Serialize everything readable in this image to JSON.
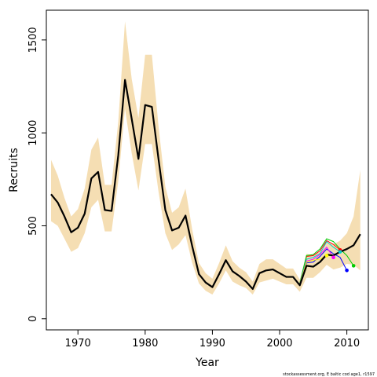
{
  "chart_data": {
    "type": "line",
    "xlabel": "Year",
    "ylabel": "Recruits",
    "caption": "stockassessment.org, E baltic cod age1, r1597",
    "xlim": [
      1965.3,
      2013.2
    ],
    "ylim": [
      -60,
      1660
    ],
    "x_ticks": [
      1970,
      1980,
      1990,
      2000,
      2010
    ],
    "y_ticks": [
      0,
      500,
      1000,
      1500
    ],
    "grid": false,
    "colors": {
      "band": "#f5deb3",
      "estimate": "#000000",
      "retro": [
        "#ff0000",
        "#00cc00",
        "#0000ff",
        "#00cccc",
        "#ff00ff",
        "#ffff00"
      ]
    },
    "band": {
      "x": [
        1966,
        1967,
        1968,
        1969,
        1970,
        1971,
        1972,
        1973,
        1974,
        1975,
        1976,
        1977,
        1978,
        1979,
        1980,
        1981,
        1982,
        1983,
        1984,
        1985,
        1986,
        1987,
        1988,
        1989,
        1990,
        1991,
        1992,
        1993,
        1994,
        1995,
        1996,
        1997,
        1998,
        1999,
        2000,
        2001,
        2002,
        2003,
        2004,
        2005,
        2006,
        2007,
        2008,
        2009,
        2010,
        2011,
        2012
      ],
      "upper": [
        855,
        770,
        650,
        550,
        590,
        700,
        910,
        975,
        720,
        720,
        1060,
        1600,
        1290,
        1080,
        1420,
        1420,
        1030,
        710,
        570,
        600,
        700,
        480,
        300,
        245,
        215,
        300,
        395,
        310,
        275,
        250,
        200,
        295,
        320,
        320,
        295,
        270,
        270,
        210,
        350,
        340,
        360,
        410,
        400,
        420,
        460,
        550,
        800
      ],
      "lower": [
        525,
        500,
        430,
        360,
        380,
        460,
        600,
        640,
        470,
        470,
        740,
        1130,
        890,
        690,
        940,
        940,
        680,
        460,
        370,
        400,
        450,
        300,
        190,
        150,
        130,
        190,
        260,
        200,
        180,
        165,
        130,
        195,
        205,
        215,
        200,
        185,
        185,
        145,
        220,
        220,
        250,
        290,
        265,
        275,
        295,
        290,
        260
      ]
    },
    "series": [
      {
        "x": [
          1966,
          1967,
          1968,
          1969,
          1970,
          1971,
          1972,
          1973,
          1974,
          1975,
          1976,
          1977,
          1978,
          1979,
          1980,
          1981,
          1982,
          1983,
          1984,
          1985,
          1986,
          1987,
          1988,
          1989,
          1990,
          1991,
          1992,
          1993,
          1994,
          1995,
          1996,
          1997,
          1998,
          1999,
          2000,
          2001,
          2002,
          2003,
          2004,
          2005,
          2006,
          2007,
          2008,
          2009,
          2010,
          2011,
          2012
        ],
        "values": [
          670,
          625,
          550,
          465,
          490,
          565,
          755,
          790,
          585,
          580,
          880,
          1285,
          1075,
          860,
          1150,
          1140,
          855,
          585,
          475,
          490,
          555,
          390,
          240,
          195,
          170,
          240,
          315,
          255,
          230,
          200,
          160,
          245,
          260,
          265,
          245,
          225,
          225,
          180,
          285,
          280,
          305,
          345,
          340,
          360,
          375,
          395,
          455
        ]
      }
    ],
    "retrospective": [
      {
        "x": [
          2003,
          2004,
          2005,
          2006,
          2007,
          2008,
          2009
        ],
        "values": [
          185,
          335,
          340,
          365,
          420,
          400,
          370
        ]
      },
      {
        "x": [
          2003,
          2004,
          2005,
          2006,
          2007,
          2008,
          2009,
          2010,
          2011
        ],
        "values": [
          190,
          340,
          345,
          375,
          430,
          415,
          375,
          340,
          285
        ]
      },
      {
        "x": [
          2003,
          2004,
          2005,
          2006,
          2007,
          2008,
          2009,
          2010
        ],
        "values": [
          185,
          300,
          305,
          335,
          375,
          350,
          330,
          260
        ]
      },
      {
        "x": [
          2003,
          2004,
          2005,
          2006,
          2007,
          2008,
          2009
        ],
        "values": [
          185,
          320,
          330,
          350,
          415,
          385,
          360
        ]
      },
      {
        "x": [
          2003,
          2004,
          2005,
          2006,
          2007,
          2008
        ],
        "values": [
          185,
          310,
          320,
          345,
          385,
          330
        ]
      },
      {
        "x": [
          2003,
          2004,
          2005,
          2006,
          2007
        ],
        "values": [
          185,
          305,
          315,
          320,
          340
        ]
      }
    ]
  }
}
